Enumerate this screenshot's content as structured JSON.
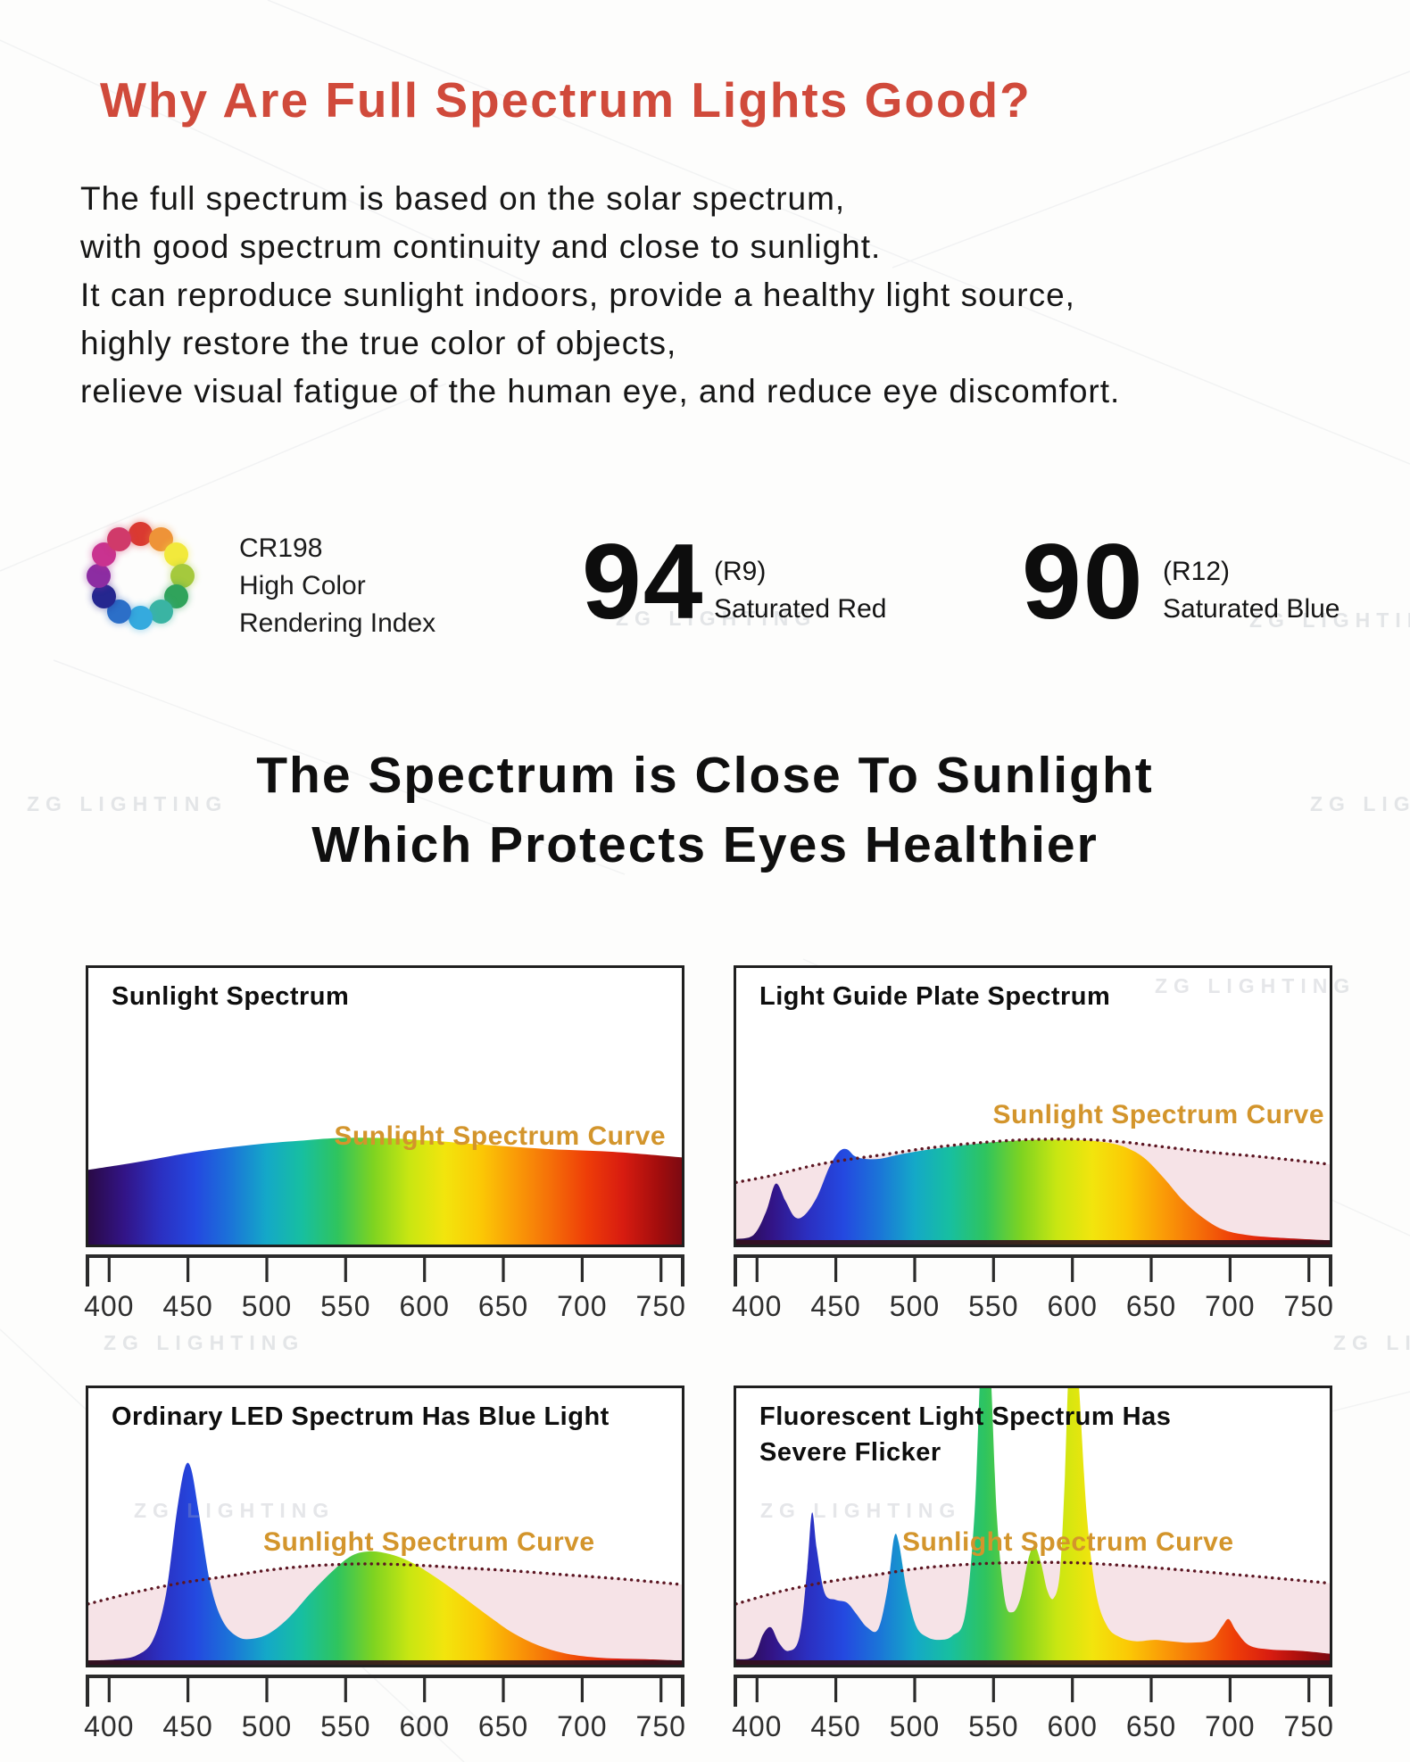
{
  "page": {
    "heading": "Why Are Full Spectrum Lights Good?",
    "intro_lines": [
      "The full spectrum is based on the solar spectrum,",
      "with good spectrum continuity and close to sunlight.",
      "It can reproduce sunlight indoors, provide a healthy light source,",
      "highly restore the true color of objects,",
      "relieve visual fatigue of the human eye, and reduce eye discomfort."
    ],
    "cri": {
      "code": "CR198",
      "line1": "High Color",
      "line2": "Rendering Index",
      "wheel_colors": [
        "#da3a31",
        "#ee9338",
        "#f2e93c",
        "#a5c93d",
        "#30a35b",
        "#3ab4a3",
        "#35aade",
        "#2c6fc8",
        "#25278f",
        "#8c2da2",
        "#c93390",
        "#d03a6a"
      ]
    },
    "metrics": [
      {
        "value": "94",
        "ref": "(R9)",
        "label": "Saturated Red"
      },
      {
        "value": "90",
        "ref": "(R12)",
        "label": "Saturated Blue"
      }
    ],
    "section_heading": [
      "The Spectrum is Close To Sunlight",
      "Which Protects Eyes Healthier"
    ],
    "watermark": "ZG LIGHTING"
  },
  "colors": {
    "heading_red": "#d04a3b",
    "curve_label_orange": "#d3952c",
    "dotted_sunlight_curve": "#5c1622",
    "sunlight_reference_fill": "#f5e1e6",
    "axis": "#2b2b2b",
    "spectrum_gradient": [
      [
        0.0,
        "#2a0a46"
      ],
      [
        0.06,
        "#321486"
      ],
      [
        0.12,
        "#2b2fc0"
      ],
      [
        0.18,
        "#2448e0"
      ],
      [
        0.24,
        "#1b74d8"
      ],
      [
        0.3,
        "#14a8c8"
      ],
      [
        0.36,
        "#17bfa0"
      ],
      [
        0.42,
        "#2fc45e"
      ],
      [
        0.48,
        "#7ed321"
      ],
      [
        0.54,
        "#c8e612"
      ],
      [
        0.6,
        "#f2e50d"
      ],
      [
        0.66,
        "#fbc905"
      ],
      [
        0.72,
        "#fa9b07"
      ],
      [
        0.78,
        "#f56e08"
      ],
      [
        0.84,
        "#ee3d08"
      ],
      [
        0.9,
        "#d81c10"
      ],
      [
        0.96,
        "#a30d0d"
      ],
      [
        1.0,
        "#7c0a12"
      ]
    ]
  },
  "chart_data": [
    {
      "type": "area",
      "title_lines": [
        "Sunlight Spectrum"
      ],
      "curve_label": "Sunlight Spectrum Curve",
      "x_ticks": [
        400,
        450,
        500,
        550,
        600,
        650,
        700,
        750
      ],
      "x_range": [
        387,
        763
      ],
      "ylim": [
        0,
        1
      ],
      "grid": false,
      "series": [
        {
          "name": "Sunlight Spectrum",
          "style": "rainbow_area",
          "points": [
            [
              387,
              0.27
            ],
            [
              420,
              0.3
            ],
            [
              455,
              0.335
            ],
            [
              490,
              0.36
            ],
            [
              520,
              0.375
            ],
            [
              545,
              0.385
            ],
            [
              575,
              0.385
            ],
            [
              605,
              0.375
            ],
            [
              640,
              0.36
            ],
            [
              680,
              0.345
            ],
            [
              720,
              0.335
            ],
            [
              763,
              0.315
            ]
          ]
        }
      ]
    },
    {
      "type": "area",
      "title_lines": [
        "Light Guide Plate Spectrum"
      ],
      "curve_label": "Sunlight Spectrum Curve",
      "x_ticks": [
        400,
        450,
        500,
        550,
        600,
        650,
        700,
        750
      ],
      "x_range": [
        387,
        763
      ],
      "ylim": [
        0,
        1
      ],
      "grid": false,
      "series": [
        {
          "name": "Sunlight Spectrum Curve",
          "style": "sunlight_reference",
          "points": [
            [
              387,
              0.225
            ],
            [
              410,
              0.25
            ],
            [
              435,
              0.285
            ],
            [
              455,
              0.305
            ],
            [
              480,
              0.325
            ],
            [
              510,
              0.35
            ],
            [
              545,
              0.37
            ],
            [
              575,
              0.38
            ],
            [
              605,
              0.38
            ],
            [
              630,
              0.372
            ],
            [
              655,
              0.355
            ],
            [
              685,
              0.335
            ],
            [
              715,
              0.32
            ],
            [
              740,
              0.305
            ],
            [
              763,
              0.29
            ]
          ]
        },
        {
          "name": "Light Guide Plate Spectrum",
          "style": "rainbow_area",
          "points": [
            [
              387,
              0.02
            ],
            [
              398,
              0.035
            ],
            [
              406,
              0.12
            ],
            [
              412,
              0.22
            ],
            [
              418,
              0.16
            ],
            [
              424,
              0.1
            ],
            [
              430,
              0.105
            ],
            [
              438,
              0.17
            ],
            [
              446,
              0.28
            ],
            [
              452,
              0.335
            ],
            [
              457,
              0.345
            ],
            [
              462,
              0.32
            ],
            [
              468,
              0.31
            ],
            [
              478,
              0.31
            ],
            [
              490,
              0.325
            ],
            [
              505,
              0.34
            ],
            [
              525,
              0.355
            ],
            [
              550,
              0.37
            ],
            [
              575,
              0.378
            ],
            [
              600,
              0.378
            ],
            [
              618,
              0.372
            ],
            [
              632,
              0.355
            ],
            [
              645,
              0.315
            ],
            [
              658,
              0.24
            ],
            [
              670,
              0.16
            ],
            [
              682,
              0.1
            ],
            [
              695,
              0.055
            ],
            [
              710,
              0.035
            ],
            [
              730,
              0.025
            ],
            [
              763,
              0.015
            ]
          ]
        }
      ]
    },
    {
      "type": "area",
      "title_lines": [
        "Ordinary LED Spectrum Has Blue Light"
      ],
      "curve_label": "Sunlight Spectrum Curve",
      "x_ticks": [
        400,
        450,
        500,
        550,
        600,
        650,
        700,
        750
      ],
      "x_range": [
        387,
        763
      ],
      "ylim": [
        0,
        1
      ],
      "grid": false,
      "series": [
        {
          "name": "Sunlight Spectrum Curve",
          "style": "sunlight_reference",
          "points": [
            [
              387,
              0.22
            ],
            [
              415,
              0.26
            ],
            [
              445,
              0.295
            ],
            [
              475,
              0.32
            ],
            [
              505,
              0.345
            ],
            [
              535,
              0.36
            ],
            [
              565,
              0.365
            ],
            [
              595,
              0.36
            ],
            [
              625,
              0.35
            ],
            [
              655,
              0.34
            ],
            [
              690,
              0.325
            ],
            [
              725,
              0.31
            ],
            [
              763,
              0.29
            ]
          ]
        },
        {
          "name": "Ordinary LED Spectrum",
          "style": "rainbow_area",
          "points": [
            [
              387,
              0.015
            ],
            [
              405,
              0.02
            ],
            [
              418,
              0.035
            ],
            [
              428,
              0.09
            ],
            [
              436,
              0.25
            ],
            [
              443,
              0.55
            ],
            [
              448,
              0.71
            ],
            [
              452,
              0.71
            ],
            [
              457,
              0.55
            ],
            [
              464,
              0.3
            ],
            [
              472,
              0.16
            ],
            [
              482,
              0.1
            ],
            [
              492,
              0.095
            ],
            [
              502,
              0.115
            ],
            [
              514,
              0.17
            ],
            [
              528,
              0.26
            ],
            [
              542,
              0.34
            ],
            [
              554,
              0.395
            ],
            [
              566,
              0.41
            ],
            [
              578,
              0.4
            ],
            [
              590,
              0.375
            ],
            [
              602,
              0.335
            ],
            [
              615,
              0.285
            ],
            [
              628,
              0.23
            ],
            [
              642,
              0.17
            ],
            [
              656,
              0.115
            ],
            [
              672,
              0.07
            ],
            [
              690,
              0.04
            ],
            [
              712,
              0.025
            ],
            [
              740,
              0.02
            ],
            [
              763,
              0.015
            ]
          ]
        }
      ]
    },
    {
      "type": "area",
      "title_lines": [
        "Fluorescent Light Spectrum Has",
        "Severe Flicker"
      ],
      "curve_label": "Sunlight Spectrum Curve",
      "x_ticks": [
        400,
        450,
        500,
        550,
        600,
        650,
        700,
        750
      ],
      "x_range": [
        387,
        763
      ],
      "ylim": [
        0,
        1
      ],
      "grid": false,
      "series": [
        {
          "name": "Sunlight Spectrum Curve",
          "style": "sunlight_reference",
          "points": [
            [
              387,
              0.22
            ],
            [
              415,
              0.265
            ],
            [
              445,
              0.3
            ],
            [
              475,
              0.325
            ],
            [
              505,
              0.35
            ],
            [
              540,
              0.365
            ],
            [
              575,
              0.37
            ],
            [
              605,
              0.368
            ],
            [
              635,
              0.358
            ],
            [
              665,
              0.345
            ],
            [
              695,
              0.33
            ],
            [
              725,
              0.315
            ],
            [
              763,
              0.295
            ]
          ]
        },
        {
          "name": "Fluorescent Light Spectrum",
          "style": "rainbow_area",
          "points": [
            [
              387,
              0.02
            ],
            [
              398,
              0.03
            ],
            [
              404,
              0.11
            ],
            [
              409,
              0.135
            ],
            [
              414,
              0.08
            ],
            [
              420,
              0.05
            ],
            [
              427,
              0.1
            ],
            [
              432,
              0.35
            ],
            [
              435,
              0.55
            ],
            [
              438,
              0.42
            ],
            [
              443,
              0.26
            ],
            [
              450,
              0.235
            ],
            [
              457,
              0.225
            ],
            [
              463,
              0.185
            ],
            [
              470,
              0.135
            ],
            [
              477,
              0.13
            ],
            [
              483,
              0.28
            ],
            [
              487,
              0.46
            ],
            [
              490,
              0.44
            ],
            [
              495,
              0.27
            ],
            [
              501,
              0.14
            ],
            [
              508,
              0.1
            ],
            [
              516,
              0.09
            ],
            [
              524,
              0.105
            ],
            [
              532,
              0.18
            ],
            [
              538,
              0.55
            ],
            [
              542,
              1.1
            ],
            [
              545,
              1.16
            ],
            [
              548,
              1.08
            ],
            [
              552,
              0.55
            ],
            [
              557,
              0.24
            ],
            [
              562,
              0.19
            ],
            [
              567,
              0.24
            ],
            [
              572,
              0.38
            ],
            [
              576,
              0.43
            ],
            [
              580,
              0.37
            ],
            [
              584,
              0.27
            ],
            [
              588,
              0.24
            ],
            [
              592,
              0.33
            ],
            [
              595,
              0.65
            ],
            [
              598,
              1.12
            ],
            [
              601,
              1.16
            ],
            [
              604,
              1.02
            ],
            [
              609,
              0.55
            ],
            [
              615,
              0.26
            ],
            [
              622,
              0.14
            ],
            [
              630,
              0.1
            ],
            [
              640,
              0.085
            ],
            [
              652,
              0.09
            ],
            [
              662,
              0.085
            ],
            [
              675,
              0.08
            ],
            [
              688,
              0.09
            ],
            [
              695,
              0.14
            ],
            [
              699,
              0.165
            ],
            [
              704,
              0.12
            ],
            [
              712,
              0.07
            ],
            [
              725,
              0.055
            ],
            [
              745,
              0.05
            ],
            [
              763,
              0.04
            ]
          ]
        }
      ]
    }
  ]
}
